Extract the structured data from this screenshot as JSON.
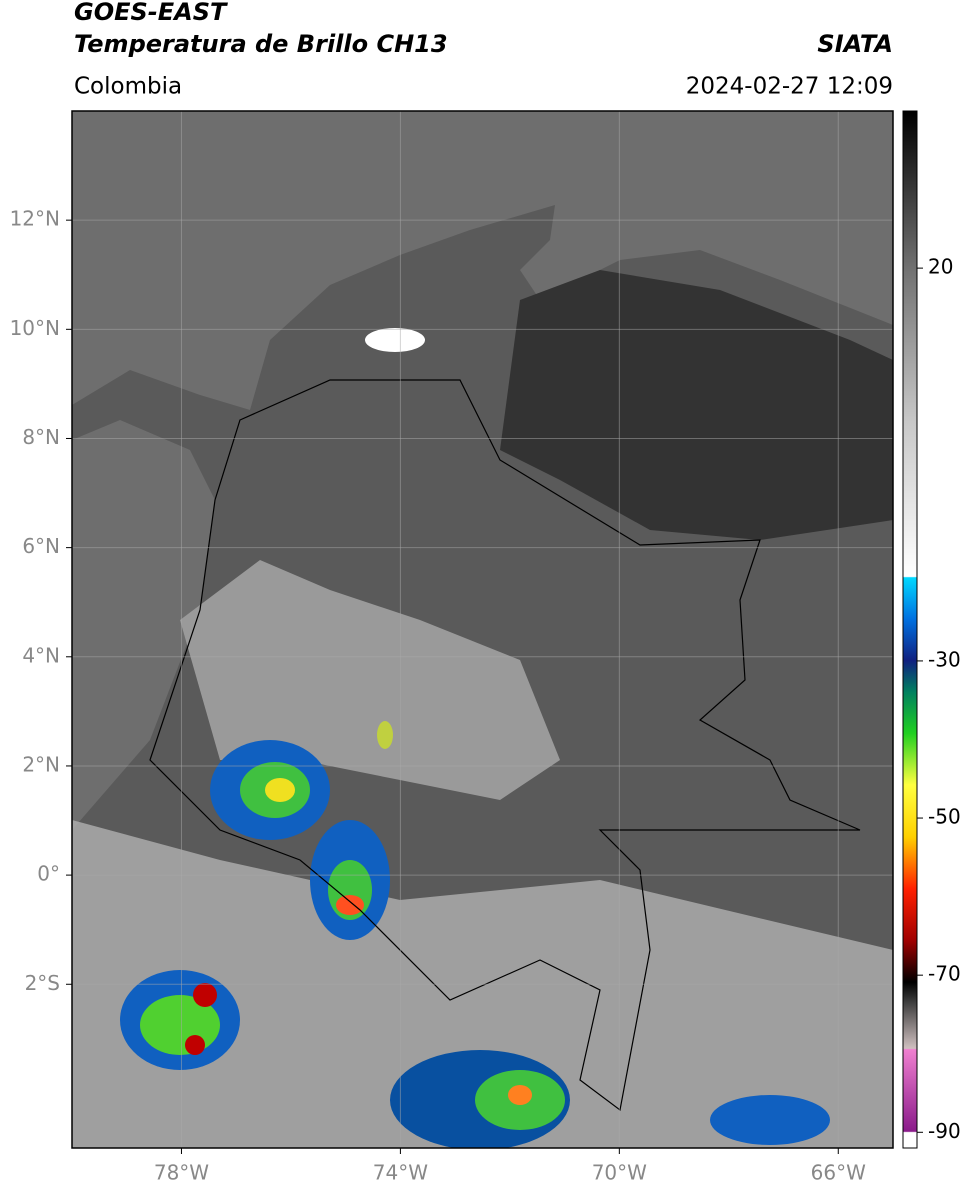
{
  "header": {
    "line1": "GOES-EAST",
    "line2": "Temperatura de Brillo CH13",
    "source": "SIATA",
    "region": "Colombia",
    "datetime": "2024-02-27 12:09"
  },
  "map": {
    "xlim": [
      -80,
      -65
    ],
    "ylim": [
      -5,
      14
    ],
    "xticks": [
      {
        "value": -78,
        "label": "78°W"
      },
      {
        "value": -74,
        "label": "74°W"
      },
      {
        "value": -70,
        "label": "70°W"
      },
      {
        "value": -66,
        "label": "66°W"
      }
    ],
    "yticks": [
      {
        "value": 12,
        "label": "12°N"
      },
      {
        "value": 10,
        "label": "10°N"
      },
      {
        "value": 8,
        "label": "8°N"
      },
      {
        "value": 6,
        "label": "6°N"
      },
      {
        "value": 4,
        "label": "4°N"
      },
      {
        "value": 2,
        "label": "2°N"
      },
      {
        "value": 0,
        "label": "0°"
      },
      {
        "value": -2,
        "label": "2°S"
      }
    ],
    "grid": true
  },
  "colorbar": {
    "clim": [
      -92,
      40
    ],
    "ticks": [
      20,
      -30,
      -50,
      -70,
      -90
    ]
  }
}
